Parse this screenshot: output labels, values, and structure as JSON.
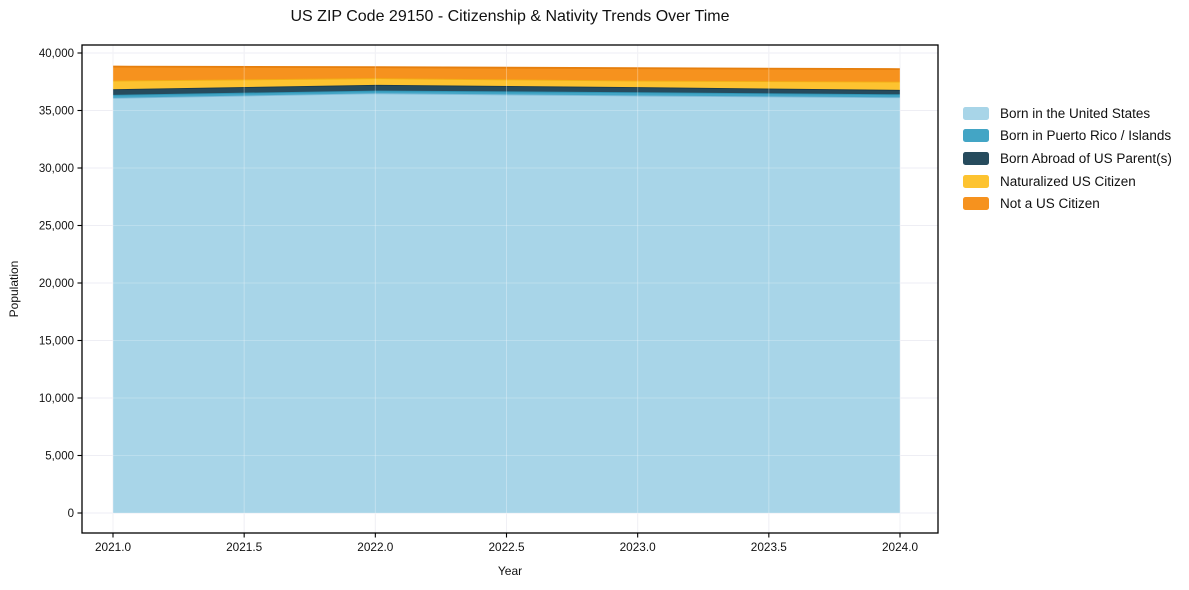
{
  "chart_data": {
    "type": "area",
    "stacked": true,
    "title": "US ZIP Code 29150 - Citizenship & Nativity Trends Over Time",
    "xlabel": "Year",
    "ylabel": "Population",
    "x": [
      2021,
      2022,
      2023,
      2024
    ],
    "series": [
      {
        "name": "Born in the United States",
        "color": "#a8d5e8",
        "edge_color": "#7fbcd9",
        "values": [
          36100,
          36500,
          36300,
          36150
        ]
      },
      {
        "name": "Born in Puerto Rico / Islands",
        "color": "#43a5c5",
        "edge_color": "#2e94b5",
        "values": [
          260,
          230,
          290,
          260
        ]
      },
      {
        "name": "Born Abroad of US Parent(s)",
        "color": "#264b5d",
        "edge_color": "#1b3a4a",
        "values": [
          490,
          500,
          440,
          380
        ]
      },
      {
        "name": "Naturalized US Citizen",
        "color": "#fdc330",
        "edge_color": "#f2ae14",
        "values": [
          750,
          580,
          570,
          720
        ]
      },
      {
        "name": "Not a US Citizen",
        "color": "#f6921e",
        "edge_color": "#e67f0d",
        "values": [
          1220,
          960,
          1080,
          1090
        ]
      }
    ],
    "totals": [
      38820,
      38770,
      38680,
      38600
    ],
    "xlim": [
      2020.88,
      2024.14
    ],
    "ylim": [
      -1700,
      40700
    ],
    "xticks": [
      2021.0,
      2021.5,
      2022.0,
      2022.5,
      2023.0,
      2023.5,
      2024.0
    ],
    "xtick_labels": [
      "2021.0",
      "2021.5",
      "2022.0",
      "2022.5",
      "2023.0",
      "2023.5",
      "2024.0"
    ],
    "yticks": [
      0,
      5000,
      10000,
      15000,
      20000,
      25000,
      30000,
      35000,
      40000
    ],
    "ytick_labels": [
      "0",
      "5,000",
      "10,000",
      "15,000",
      "20,000",
      "25,000",
      "30,000",
      "35,000",
      "40,000"
    ],
    "grid": true,
    "grid_color": "#eaeaf1",
    "spine_color": "#000000",
    "text_color": "#111111",
    "legend_position": "outside-right",
    "background_color": "#ffffff"
  }
}
